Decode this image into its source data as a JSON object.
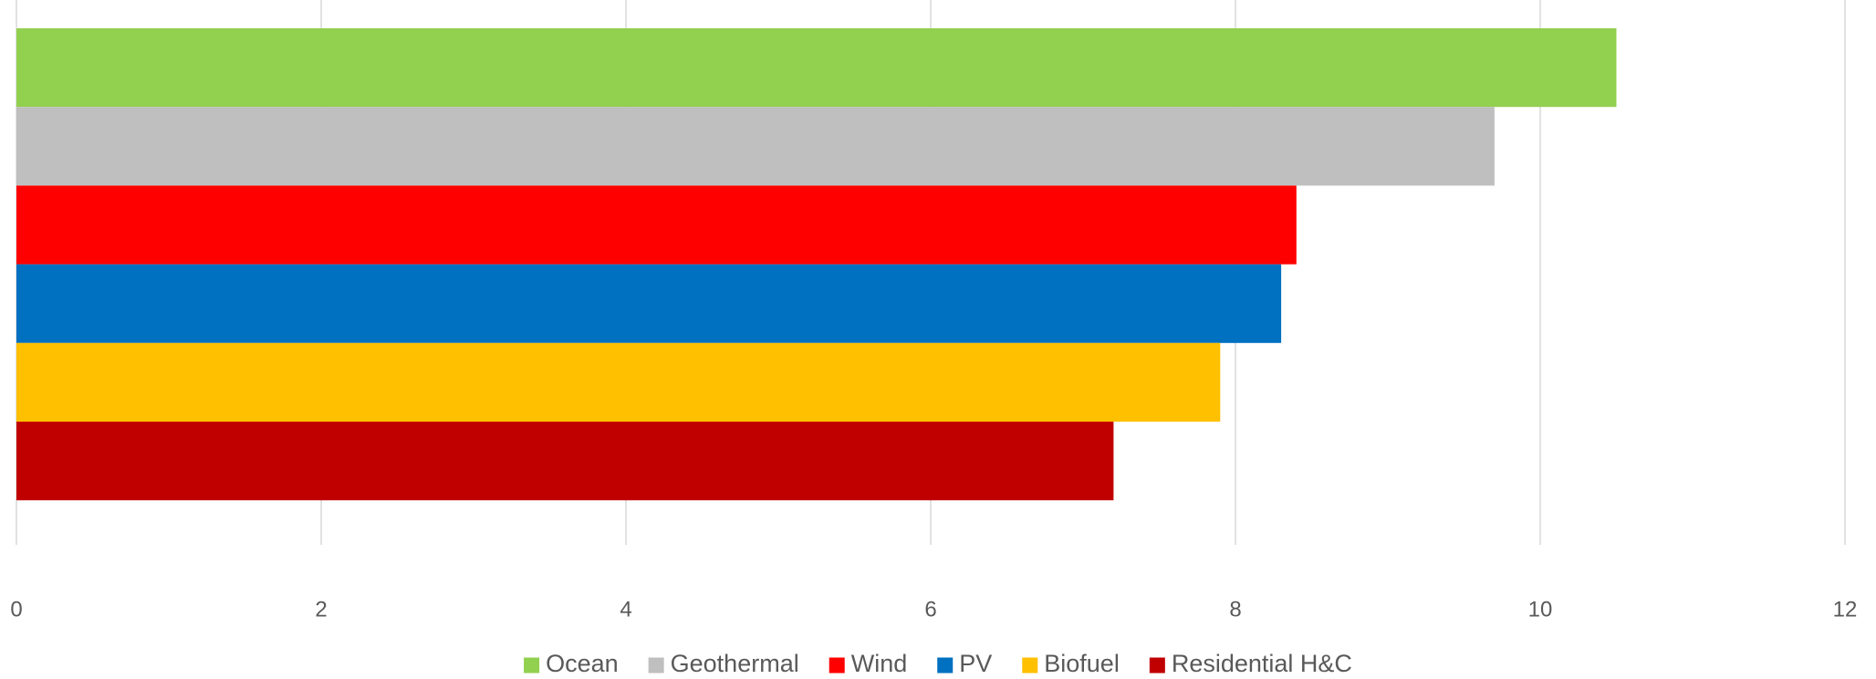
{
  "chart_data": {
    "type": "bar",
    "orientation": "horizontal",
    "categories": [
      null
    ],
    "series": [
      {
        "name": "Ocean",
        "color": "#92d050",
        "values": [
          10.5
        ]
      },
      {
        "name": "Geothermal",
        "color": "#bfbfbf",
        "values": [
          9.7
        ]
      },
      {
        "name": "Wind",
        "color": "#ff0000",
        "values": [
          8.4
        ]
      },
      {
        "name": "PV",
        "color": "#0070c0",
        "values": [
          8.3
        ]
      },
      {
        "name": "Biofuel",
        "color": "#ffc000",
        "values": [
          7.9
        ]
      },
      {
        "name": "Residential H&C",
        "color": "#c00000",
        "values": [
          7.2
        ]
      }
    ],
    "xlim": [
      0,
      12
    ],
    "xticks": [
      0,
      2,
      4,
      6,
      8,
      10,
      12
    ],
    "grid": true,
    "legend": "bottom"
  }
}
